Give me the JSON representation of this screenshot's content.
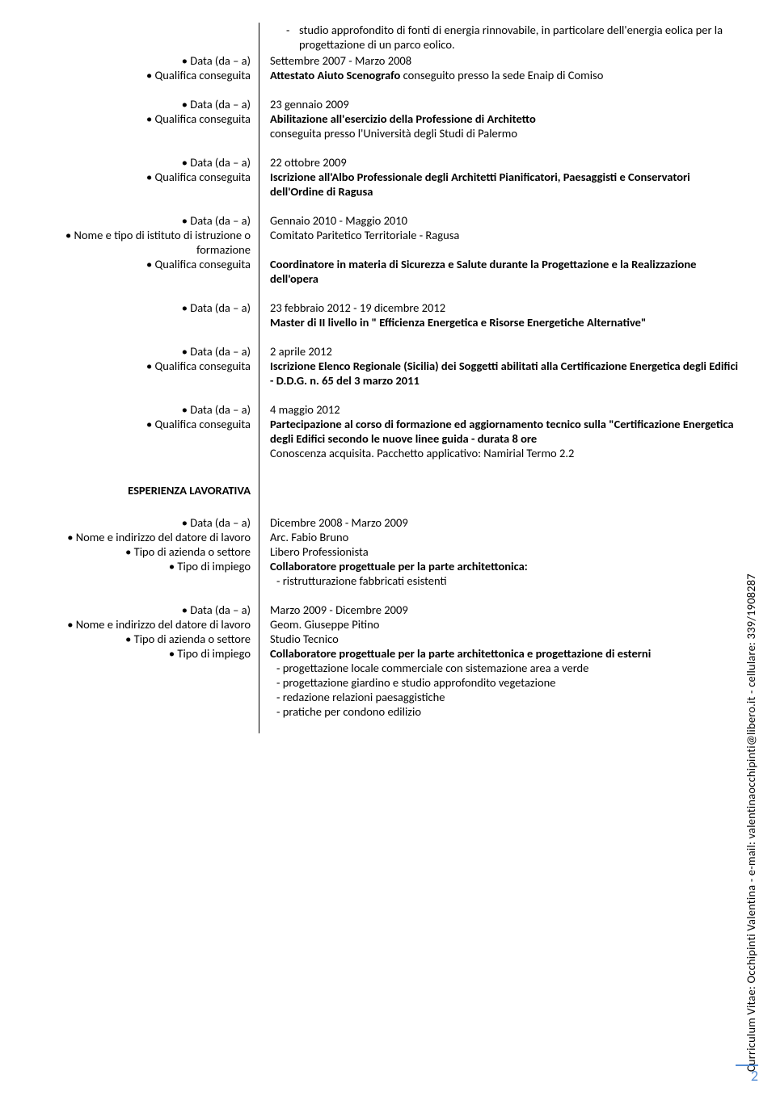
{
  "label_data": "• Data (da – a)",
  "label_qualifica": "• Qualifica conseguita",
  "label_istituto": "• Nome e tipo di istituto di istruzione o formazione",
  "label_datore": "• Nome e  indirizzo del datore di  lavoro",
  "label_settore": "• Tipo di azienda o settore",
  "label_impiego": "• Tipo di impiego",
  "section_esperienza": "ESPERIENZA LAVORATIVA",
  "top_bullet": "studio approfondito di fonti di energia rinnovabile, in particolare dell'energia eolica per la progettazione di un parco eolico.",
  "e1_date": "Settembre 2007 - Marzo 2008",
  "e1_line1a": "Attestato Aiuto Scenografo ",
  "e1_line1b": "conseguito presso la sede Enaip di Comiso",
  "e2_date": "23 gennaio 2009",
  "e2_line1": "Abilitazione all'esercizio della Professione di Architetto",
  "e2_line2": "conseguita presso l'Università degli Studi di Palermo",
  "e3_date": "22 ottobre 2009",
  "e3_line1": "Iscrizione all'Albo Professionale degli Architetti Pianificatori, Paesaggisti e Conservatori dell'Ordine di Ragusa",
  "e4_date": "Gennaio 2010 - Maggio 2010",
  "e4_ist": "Comitato Paritetico Territoriale - Ragusa",
  "e4_qual": "Coordinatore in materia di Sicurezza e Salute durante la Progettazione e la Realizzazione dell'opera",
  "e5_date": "23 febbraio 2012 - 19 dicembre 2012",
  "e5_line1": "Master di II livello in \" Efficienza Energetica e Risorse Energetiche Alternative\"",
  "e6_date": "2 aprile 2012",
  "e6_line1": "Iscrizione Elenco Regionale (Sicilia) dei Soggetti abilitati alla Certificazione Energetica degli Edifici - D.D.G. n. 65 del 3 marzo 2011",
  "e7_date": "4 maggio 2012",
  "e7_line1": "Partecipazione al corso di formazione ed aggiornamento tecnico sulla \"Certificazione Energetica degli Edifici secondo le nuove linee guida - durata 8 ore",
  "e7_line2": "Conoscenza acquisita. Pacchetto applicativo: Namirial Termo 2.2",
  "w1_date": "Dicembre 2008 - Marzo 2009",
  "w1_datore": "Arc. Fabio Bruno",
  "w1_settore": "Libero Professionista",
  "w1_impiego": "Collaboratore progettuale per la parte architettonica:",
  "w1_b1": "- ristrutturazione fabbricati esistenti",
  "w2_date": "Marzo 2009 - Dicembre 2009",
  "w2_datore": "Geom. Giuseppe Pitino",
  "w2_settore": "Studio Tecnico",
  "w2_impiego": "Collaboratore progettuale per la parte architettonica e progettazione di esterni",
  "w2_b1": "- progettazione locale commerciale con sistemazione area a verde",
  "w2_b2": "- progettazione giardino e studio approfondito vegetazione",
  "w2_b3": "- redazione relazioni paesaggistiche",
  "w2_b4": "- pratiche per condono edilizio",
  "sidebar_text": "Curriculum Vitae: Occhipinti Valentina - e-mail: valentinaocchipinti@libero.it - cellulare: 339/1908287",
  "page_num": "2"
}
